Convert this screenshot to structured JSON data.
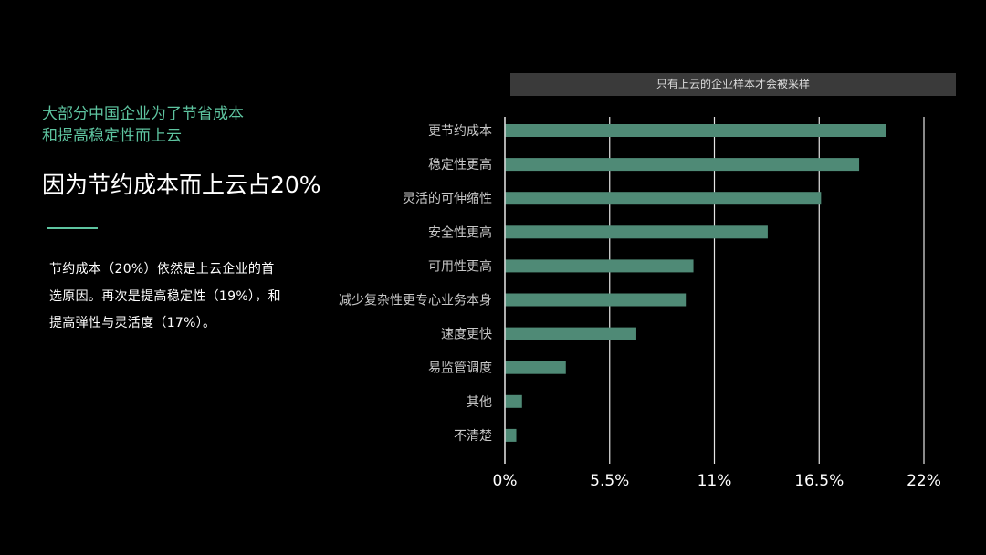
{
  "left": {
    "subtitle_lines": [
      "大部分中国企业为了节省成本",
      "和提高稳定性而上云"
    ],
    "headline": "因为节约成本而上云占20%",
    "body": "节约成本（20%）依然是上云企业的首选原因。再次是提高稳定性（19%），和提高弹性与灵活度（17%）。"
  },
  "chart_note": "只有上云的企业样本才会被采样",
  "colors": {
    "accent": "#5ec4a0",
    "bar": "#4f8a76",
    "gridline": "#e6e6e6",
    "text": "#ffffff",
    "label": "#c8c8c8",
    "background": "#000000"
  },
  "chart_data": {
    "type": "bar",
    "orientation": "horizontal",
    "categories": [
      "更节约成本",
      "稳定性更高",
      "灵活的可伸缩性",
      "安全性更高",
      "可用性更高",
      "减少复杂性更专心业务本身",
      "速度更快",
      "易监管调度",
      "其他",
      "不清楚"
    ],
    "values": [
      20.0,
      18.6,
      16.6,
      13.8,
      9.9,
      9.5,
      6.9,
      3.2,
      0.9,
      0.6
    ],
    "x_ticks": [
      "0%",
      "5.5%",
      "11%",
      "16.5%",
      "22%"
    ],
    "xlim": [
      0,
      22
    ],
    "grid": true,
    "title": "",
    "xlabel": "",
    "ylabel": ""
  }
}
